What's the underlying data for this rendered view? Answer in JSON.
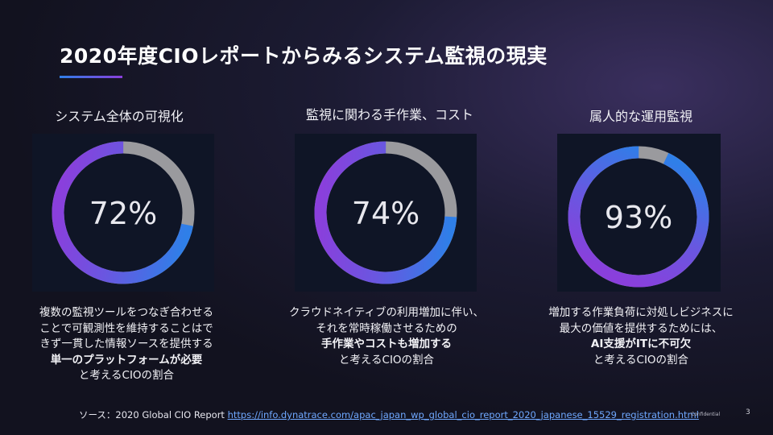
{
  "slide": {
    "title": "2020年度CIOレポートからみるシステム監視の現実",
    "accent_colors": {
      "blue": "#2f7fe8",
      "purple": "#8a3fdc",
      "gray": "#9a9a9e"
    }
  },
  "columns": [
    {
      "heading": "システム全体の可視化",
      "percent_label": "72%",
      "percent_value": 72,
      "description": [
        {
          "text": "複数の監視ツールをつなぎ合わせる",
          "bold": false
        },
        {
          "text": "ことで可観測性を維持することはで",
          "bold": false
        },
        {
          "text": "きず一貫した情報ソースを提供する",
          "bold": false
        },
        {
          "text": "単一のプラットフォームが必要",
          "bold": true
        },
        {
          "text": "と考えるCIOの割合",
          "bold": false
        }
      ]
    },
    {
      "heading": "監視に関わる手作業、コスト",
      "percent_label": "74%",
      "percent_value": 74,
      "description": [
        {
          "text": "クラウドネイティブの利用増加に伴い、",
          "bold": false
        },
        {
          "text": "それを常時稼働させるための",
          "bold": false
        },
        {
          "text": "手作業やコストも増加する",
          "bold": true
        },
        {
          "text": "と考えるCIOの割合",
          "bold": false
        }
      ]
    },
    {
      "heading": "属人的な運用監視",
      "percent_label": "93%",
      "percent_value": 93,
      "description": [
        {
          "text": "増加する作業負荷に対処しビジネスに",
          "bold": false
        },
        {
          "text": "最大の価値を提供するためには、",
          "bold": false
        },
        {
          "text": "AI支援がITに不可欠",
          "bold": true
        },
        {
          "text": "と考えるCIOの割合",
          "bold": false
        }
      ]
    }
  ],
  "footer": {
    "source_prefix": "ソース：2020 Global CIO Report ",
    "source_link": "https://info.dynatrace.com/apac_japan_wp_global_cio_report_2020_japanese_15529_registration.html",
    "confidential": "Confidential",
    "page_number": "3"
  }
}
